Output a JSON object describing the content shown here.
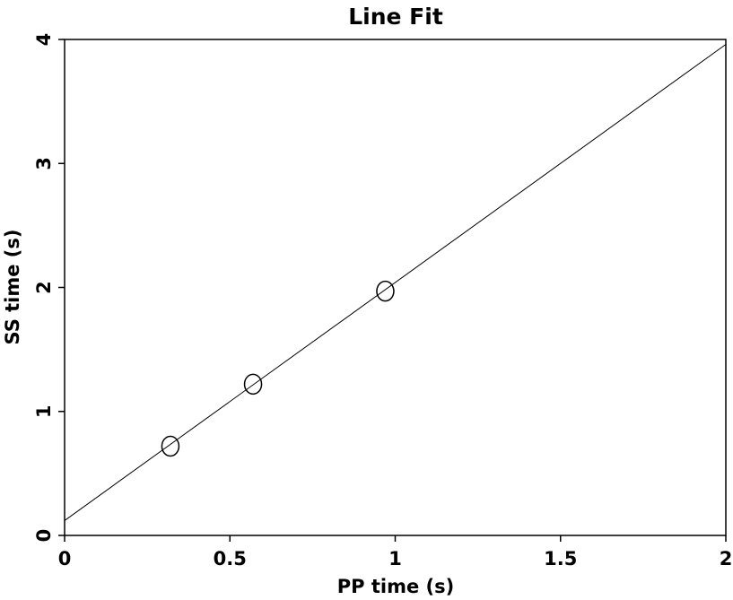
{
  "chart_data": {
    "type": "scatter",
    "title": "Line Fit",
    "xlabel": "PP time (s)",
    "ylabel": "SS time (s)",
    "xlim": [
      0,
      2
    ],
    "ylim": [
      0,
      4
    ],
    "x_ticks": [
      0,
      0.5,
      1,
      1.5,
      2
    ],
    "x_tick_labels": [
      "0",
      "0.5",
      "1",
      "1.5",
      "2"
    ],
    "y_ticks": [
      0,
      1,
      2,
      3,
      4
    ],
    "y_tick_labels": [
      "0",
      "1",
      "2",
      "3",
      "4"
    ],
    "grid": false,
    "series": [
      {
        "kind": "points",
        "marker": "open-circle",
        "x": [
          0.32,
          0.57,
          0.97
        ],
        "y": [
          0.72,
          1.22,
          1.97
        ]
      },
      {
        "kind": "fit-line",
        "x": [
          0,
          2
        ],
        "y": [
          0.12,
          3.96
        ]
      }
    ],
    "colors": {
      "axes": "#000000",
      "line": "#000000",
      "markers": "#000000",
      "background": "#ffffff"
    }
  }
}
